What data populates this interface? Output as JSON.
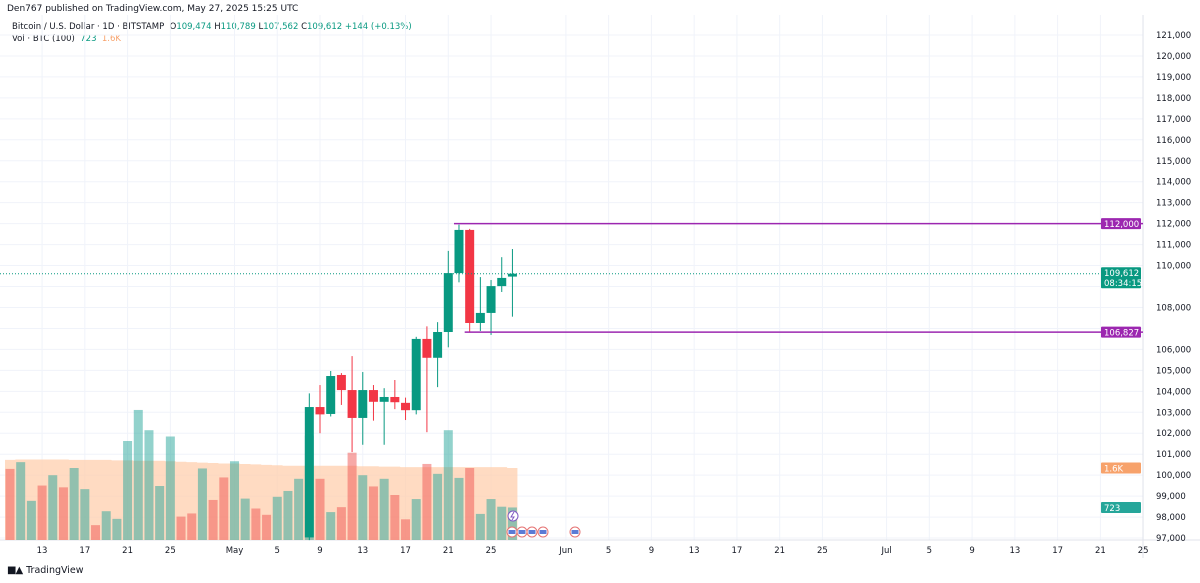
{
  "header": {
    "published": "Den767 published on TradingView.com, May 27, 2025 15:25 UTC",
    "symbol": "Bitcoin / U.S. Dollar · 1D · BITSTAMP",
    "open_label": "O",
    "open": "109,474",
    "high_label": "H",
    "high": "110,789",
    "low_label": "L",
    "low": "107,562",
    "close_label": "C",
    "close": "109,612",
    "change": "+144 (+0.13%)",
    "vol_label": "Vol · BTC (100)",
    "vol_value": "723",
    "vol_ma": "1.6K"
  },
  "footer": {
    "brand": "TradingView",
    "logo_text": "TV"
  },
  "colors": {
    "up": "#089981",
    "down": "#f23645",
    "level": "#9c27b0",
    "vol_ma": "#f7a26b",
    "vol_up": "#26a69a",
    "vol_down": "#ef5350"
  },
  "chart_data": {
    "type": "candlestick",
    "ylim": [
      97000,
      121000
    ],
    "y_ticks": [
      "121,000",
      "120,000",
      "119,000",
      "118,000",
      "117,000",
      "116,000",
      "115,000",
      "114,000",
      "113,000",
      "112,000",
      "111,000",
      "110,000",
      "108,000",
      "106,000",
      "105,000",
      "104,000",
      "103,000",
      "102,000",
      "101,000",
      "100,000",
      "99,000",
      "98,000",
      "97,000"
    ],
    "x_ticks": [
      {
        "date": "2025-04-13",
        "label": "13"
      },
      {
        "date": "2025-04-17",
        "label": "17"
      },
      {
        "date": "2025-04-21",
        "label": "21"
      },
      {
        "date": "2025-04-25",
        "label": "25"
      },
      {
        "date": "2025-05-01",
        "label": "May"
      },
      {
        "date": "2025-05-05",
        "label": "5"
      },
      {
        "date": "2025-05-09",
        "label": "9"
      },
      {
        "date": "2025-05-13",
        "label": "13"
      },
      {
        "date": "2025-05-17",
        "label": "17"
      },
      {
        "date": "2025-05-21",
        "label": "21"
      },
      {
        "date": "2025-05-25",
        "label": "25"
      },
      {
        "date": "2025-06-01",
        "label": "Jun"
      },
      {
        "date": "2025-06-05",
        "label": "5"
      },
      {
        "date": "2025-06-09",
        "label": "9"
      },
      {
        "date": "2025-06-13",
        "label": "13"
      },
      {
        "date": "2025-06-17",
        "label": "17"
      },
      {
        "date": "2025-06-21",
        "label": "21"
      },
      {
        "date": "2025-06-25",
        "label": "25"
      },
      {
        "date": "2025-07-01",
        "label": "Jul"
      },
      {
        "date": "2025-07-05",
        "label": "5"
      },
      {
        "date": "2025-07-09",
        "label": "9"
      },
      {
        "date": "2025-07-13",
        "label": "13"
      },
      {
        "date": "2025-07-17",
        "label": "17"
      },
      {
        "date": "2025-07-21",
        "label": "21"
      },
      {
        "date": "2025-07-25",
        "label": "25"
      }
    ],
    "x_range": [
      "2025-04-10",
      "2025-07-26"
    ],
    "candles": [
      {
        "date": "2025-05-08",
        "o": 97030,
        "h": 103900,
        "l": 96900,
        "c": 103250
      },
      {
        "date": "2025-05-09",
        "o": 103250,
        "h": 104300,
        "l": 102000,
        "c": 102900
      },
      {
        "date": "2025-05-10",
        "o": 102920,
        "h": 104970,
        "l": 102800,
        "c": 104730
      },
      {
        "date": "2025-05-11",
        "o": 104780,
        "h": 104870,
        "l": 103350,
        "c": 104060
      },
      {
        "date": "2025-05-12",
        "o": 104060,
        "h": 105680,
        "l": 101100,
        "c": 102730
      },
      {
        "date": "2025-05-13",
        "o": 102730,
        "h": 104920,
        "l": 101450,
        "c": 104060
      },
      {
        "date": "2025-05-14",
        "o": 104060,
        "h": 104300,
        "l": 102600,
        "c": 103500
      },
      {
        "date": "2025-05-15",
        "o": 103500,
        "h": 104150,
        "l": 101450,
        "c": 103730
      },
      {
        "date": "2025-05-16",
        "o": 103730,
        "h": 104540,
        "l": 103150,
        "c": 103480
      },
      {
        "date": "2025-05-17",
        "o": 103450,
        "h": 103700,
        "l": 102630,
        "c": 103100
      },
      {
        "date": "2025-05-18",
        "o": 103100,
        "h": 106600,
        "l": 102900,
        "c": 106500
      },
      {
        "date": "2025-05-19",
        "o": 106500,
        "h": 107100,
        "l": 102050,
        "c": 105600
      },
      {
        "date": "2025-05-20",
        "o": 105600,
        "h": 107300,
        "l": 104200,
        "c": 106830
      },
      {
        "date": "2025-05-21",
        "o": 106830,
        "h": 110700,
        "l": 106100,
        "c": 109640
      },
      {
        "date": "2025-05-22",
        "o": 109640,
        "h": 111950,
        "l": 109200,
        "c": 111700
      },
      {
        "date": "2025-05-23",
        "o": 111700,
        "h": 111750,
        "l": 106830,
        "c": 107260
      },
      {
        "date": "2025-05-24",
        "o": 107260,
        "h": 109450,
        "l": 106880,
        "c": 107740
      },
      {
        "date": "2025-05-25",
        "o": 107740,
        "h": 109310,
        "l": 106690,
        "c": 109020
      },
      {
        "date": "2025-05-26",
        "o": 109020,
        "h": 110400,
        "l": 108740,
        "c": 109410
      },
      {
        "date": "2025-05-27",
        "o": 109474,
        "h": 110789,
        "l": 107562,
        "c": 109612
      }
    ],
    "volume": {
      "start_date": "2025-04-10",
      "values": [
        1580,
        1730,
        870,
        1210,
        1440,
        1170,
        1600,
        1130,
        330,
        640,
        470,
        2200,
        2890,
        2440,
        1200,
        2300,
        520,
        590,
        1590,
        890,
        1390,
        1750,
        920,
        700,
        560,
        960,
        1090,
        1360,
        2320,
        1360,
        620,
        730,
        1940,
        1440,
        1190,
        1360,
        1000,
        460,
        910,
        1690,
        1470,
        2440,
        1380,
        1600,
        580,
        910,
        740,
        723
      ],
      "up": [
        0,
        1,
        1,
        0,
        1,
        0,
        1,
        1,
        0,
        1,
        1,
        1,
        1,
        1,
        1,
        1,
        0,
        0,
        1,
        0,
        0,
        1,
        1,
        0,
        0,
        1,
        1,
        1,
        1,
        0,
        1,
        0,
        0,
        1,
        0,
        1,
        0,
        0,
        1,
        0,
        1,
        1,
        1,
        0,
        1,
        1,
        1,
        1
      ],
      "ma": [
        1780,
        1790,
        1790,
        1790,
        1790,
        1790,
        1780,
        1780,
        1780,
        1780,
        1770,
        1770,
        1760,
        1760,
        1760,
        1750,
        1740,
        1730,
        1720,
        1710,
        1700,
        1700,
        1690,
        1680,
        1670,
        1660,
        1650,
        1650,
        1650,
        1650,
        1650,
        1650,
        1650,
        1640,
        1640,
        1630,
        1630,
        1620,
        1620,
        1620,
        1620,
        1620,
        1620,
        1620,
        1620,
        1620,
        1620,
        1600
      ]
    },
    "levels": [
      {
        "value": 112000,
        "label": "112,000",
        "from": "2025-05-22"
      },
      {
        "value": 106827,
        "label": "106,827",
        "from": "2025-05-23"
      }
    ],
    "last_price": {
      "value": 109612,
      "label": "109,612",
      "countdown": "08:34:15"
    },
    "vol_badges": {
      "ma": "1.6K",
      "last": "723"
    }
  }
}
